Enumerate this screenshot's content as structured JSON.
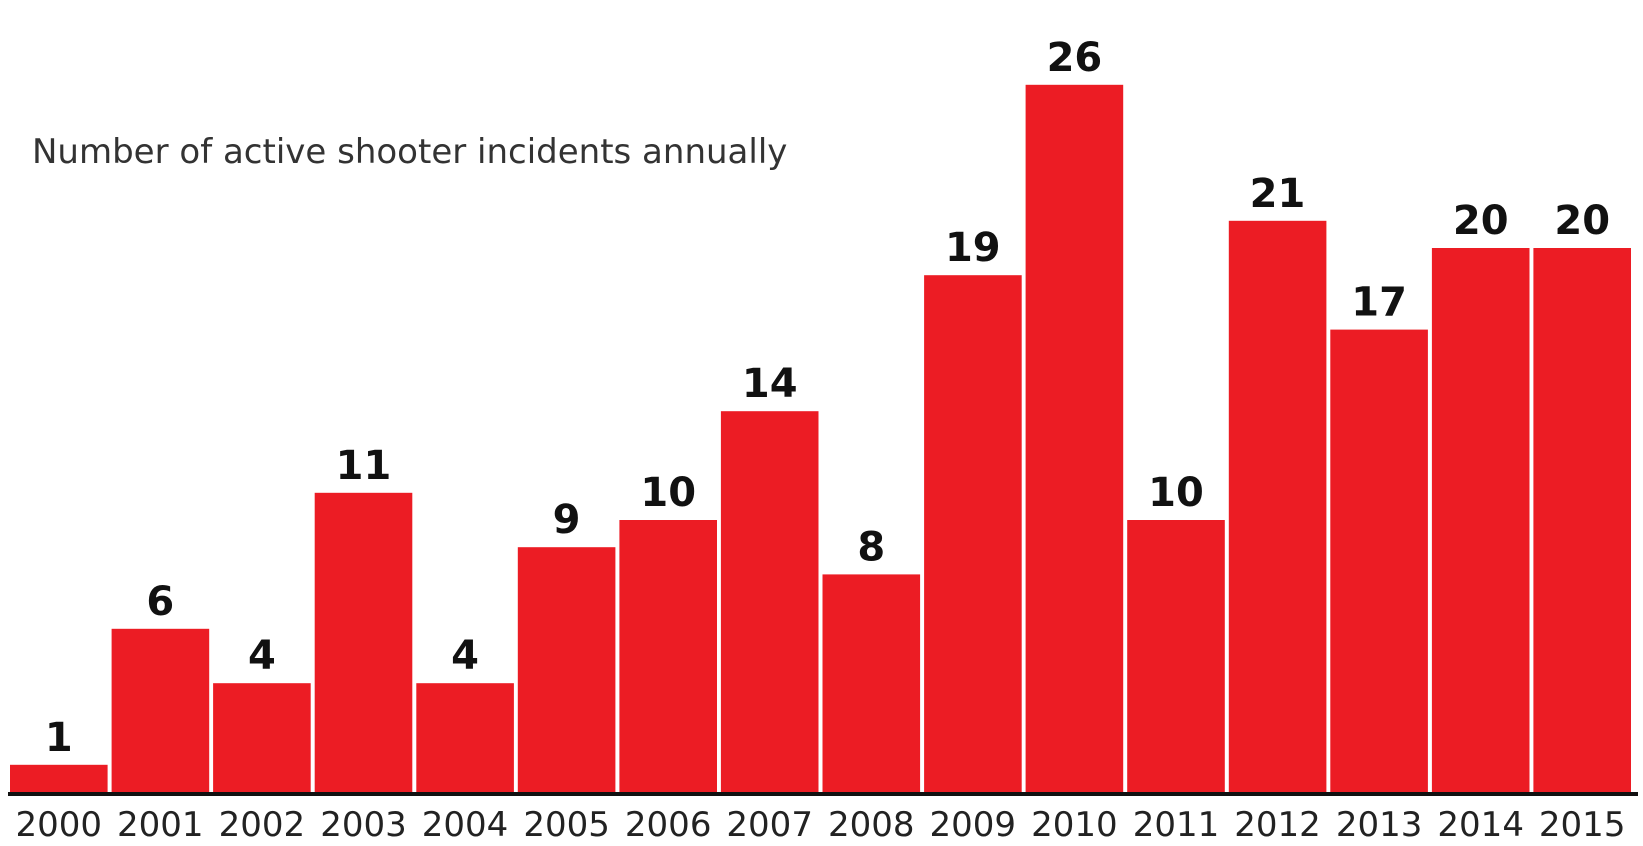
{
  "chart_data": {
    "type": "bar",
    "title": "Number of active shooter incidents annually",
    "xlabel": "",
    "ylabel": "",
    "categories": [
      "2000",
      "2001",
      "2002",
      "2003",
      "2004",
      "2005",
      "2006",
      "2007",
      "2008",
      "2009",
      "2010",
      "2011",
      "2012",
      "2013",
      "2014",
      "2015"
    ],
    "values": [
      1,
      6,
      4,
      11,
      4,
      9,
      10,
      14,
      8,
      19,
      26,
      10,
      21,
      17,
      20,
      20
    ],
    "ylim": [
      0,
      26
    ],
    "grid": false,
    "legend": "none",
    "colors": {
      "bar": "#ec1c24",
      "baseline": "#111111",
      "value_label": "#111111",
      "tick_label": "#222222",
      "title": "#333333"
    }
  }
}
